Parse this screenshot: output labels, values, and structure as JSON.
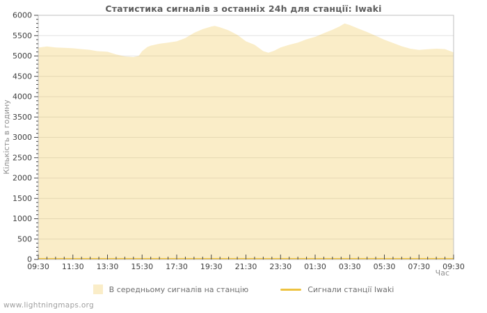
{
  "page": {
    "watermark": "www.lightningmaps.org"
  },
  "chart_data": {
    "type": "area",
    "title": "Статистика сигналів з останніх 24h для станції: Iwaki",
    "xlabel": "Час",
    "ylabel": "Кількість в годину",
    "x_range_hours": [
      0,
      24
    ],
    "ylim": [
      0,
      6000
    ],
    "x_tick_labels": [
      "09:30",
      "11:30",
      "13:30",
      "15:30",
      "17:30",
      "19:30",
      "21:30",
      "23:30",
      "01:30",
      "03:30",
      "05:30",
      "07:30",
      "09:30"
    ],
    "x_major_step_hours": 2,
    "x_minor_step_hours": 0.5,
    "y_tick_labels": [
      "0",
      "500",
      "1000",
      "1500",
      "2000",
      "2500",
      "3000",
      "3500",
      "4000",
      "4500",
      "5000",
      "5500",
      "6000"
    ],
    "y_major_step": 500,
    "y_minor_step": 100,
    "grid": {
      "horizontal_gridlines": true,
      "vertical_gridlines": false,
      "gridline_color": "#e2e2e2",
      "border_color": "#bfbfbf",
      "tick_color": "#444444",
      "legend_position": "bottom-center"
    },
    "series": [
      {
        "name": "В середньому сигналів на станцію",
        "type": "area",
        "fill_color": "rgba(237,194,64,0.29)",
        "points_hours_values": [
          [
            0,
            5205
          ],
          [
            0.5,
            5235
          ],
          [
            1,
            5210
          ],
          [
            1.5,
            5200
          ],
          [
            2,
            5190
          ],
          [
            2.5,
            5170
          ],
          [
            3,
            5150
          ],
          [
            3.4,
            5120
          ],
          [
            4,
            5105
          ],
          [
            4.5,
            5040
          ],
          [
            5,
            4990
          ],
          [
            5.5,
            4975
          ],
          [
            5.8,
            5000
          ],
          [
            6,
            5120
          ],
          [
            6.3,
            5220
          ],
          [
            6.5,
            5255
          ],
          [
            7,
            5300
          ],
          [
            7.5,
            5330
          ],
          [
            8,
            5360
          ],
          [
            8.5,
            5440
          ],
          [
            9,
            5570
          ],
          [
            9.5,
            5660
          ],
          [
            10,
            5725
          ],
          [
            10.2,
            5740
          ],
          [
            10.5,
            5705
          ],
          [
            11,
            5630
          ],
          [
            11.5,
            5520
          ],
          [
            12,
            5360
          ],
          [
            12.5,
            5275
          ],
          [
            13,
            5120
          ],
          [
            13.3,
            5080
          ],
          [
            13.6,
            5125
          ],
          [
            14,
            5210
          ],
          [
            14.5,
            5275
          ],
          [
            15,
            5330
          ],
          [
            15.5,
            5410
          ],
          [
            16,
            5470
          ],
          [
            16.5,
            5560
          ],
          [
            17,
            5645
          ],
          [
            17.4,
            5725
          ],
          [
            17.7,
            5800
          ],
          [
            18,
            5760
          ],
          [
            18.4,
            5690
          ],
          [
            19,
            5590
          ],
          [
            19.5,
            5495
          ],
          [
            20,
            5400
          ],
          [
            20.5,
            5320
          ],
          [
            21,
            5240
          ],
          [
            21.5,
            5180
          ],
          [
            22,
            5150
          ],
          [
            22.5,
            5165
          ],
          [
            23,
            5180
          ],
          [
            23.5,
            5170
          ],
          [
            24,
            5090
          ]
        ]
      },
      {
        "name": "Сигнали станції Iwaki",
        "type": "line",
        "line_color": "#edc240",
        "constant_value": 0
      }
    ]
  }
}
